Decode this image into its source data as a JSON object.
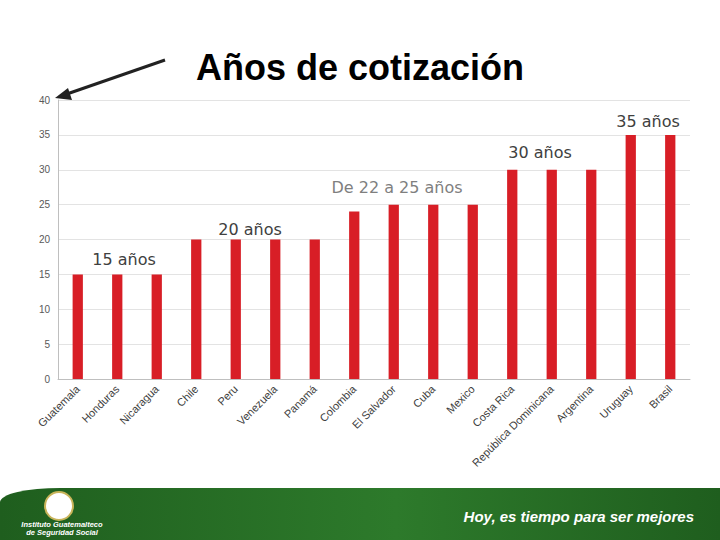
{
  "chart_data": {
    "type": "bar",
    "title": "Años de cotización",
    "categories": [
      "Guatemala",
      "Honduras",
      "Nicaragua",
      "Chile",
      "Peru",
      "Venezuela",
      "Panamá",
      "Colombia",
      "El Salvador",
      "Cuba",
      "Mexico",
      "Costa Rica",
      "República Dominicana",
      "Argentina",
      "Uruguay",
      "Brasil"
    ],
    "values": [
      15,
      15,
      15,
      20,
      20,
      20,
      20,
      24,
      25,
      25,
      25,
      30,
      30,
      30,
      35,
      35
    ],
    "color": "#d81e26",
    "ylim": [
      0,
      40
    ],
    "yticks": [
      0,
      5,
      10,
      15,
      20,
      25,
      30,
      35,
      40
    ],
    "grid": true,
    "annotations": [
      "35 años",
      "30 años",
      "De 22 a 25 años",
      "20 años",
      "15 años"
    ]
  },
  "footer": {
    "institution": [
      "Instituto Guatemalteco",
      "de Seguridad Social"
    ],
    "slogan": "Hoy, es tiempo para ser mejores"
  }
}
